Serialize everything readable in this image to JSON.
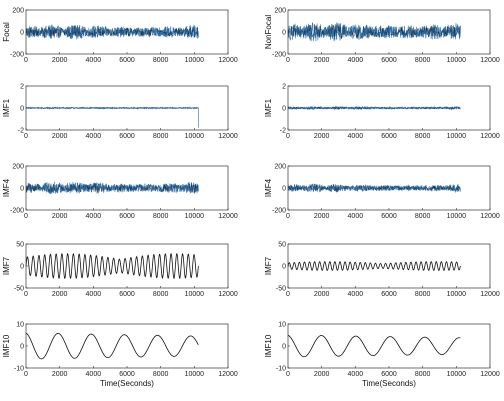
{
  "colors": {
    "signal": "#2f6fa8",
    "trace": "#111111",
    "frame": "#333333"
  },
  "chart_data": [
    {
      "type": "line",
      "panel": "focal-signal",
      "column": "left",
      "row": 0,
      "ylabel": "Focal",
      "xlabel": "",
      "xlim": [
        0,
        12000
      ],
      "ylim": [
        -200,
        200
      ],
      "xticks": [
        0,
        2000,
        4000,
        6000,
        8000,
        10000,
        12000
      ],
      "yticks": [
        200,
        0,
        -200
      ],
      "x_extent": [
        0,
        10240
      ],
      "amplitude": 70,
      "waveform": "dense-noise"
    },
    {
      "type": "line",
      "panel": "imf1-left",
      "column": "left",
      "row": 1,
      "ylabel": "IMF1",
      "xlabel": "",
      "xlim": [
        0,
        12000
      ],
      "ylim": [
        -2,
        2
      ],
      "xticks": [
        0,
        2000,
        4000,
        6000,
        8000,
        10000,
        12000
      ],
      "yticks": [
        2,
        0,
        -2
      ],
      "x_extent": [
        0,
        10240
      ],
      "amplitude": 0.05,
      "waveform": "flat-with-end-drop"
    },
    {
      "type": "line",
      "panel": "imf4-left",
      "column": "left",
      "row": 2,
      "ylabel": "IMF4",
      "xlabel": "",
      "xlim": [
        0,
        12000
      ],
      "ylim": [
        -200,
        200
      ],
      "xticks": [
        0,
        2000,
        4000,
        6000,
        8000,
        10000,
        12000
      ],
      "yticks": [
        200,
        0,
        -200
      ],
      "x_extent": [
        0,
        10240
      ],
      "amplitude": 60,
      "waveform": "dense-noise"
    },
    {
      "type": "line",
      "panel": "imf7-left",
      "column": "left",
      "row": 3,
      "ylabel": "IMF7",
      "xlabel": "",
      "xlim": [
        0,
        12000
      ],
      "ylim": [
        -50,
        50
      ],
      "xticks": [
        0,
        2000,
        4000,
        6000,
        8000,
        10000,
        12000
      ],
      "yticks": [
        50,
        0,
        -50
      ],
      "x_extent": [
        0,
        10240
      ],
      "amplitude": 28,
      "waveform": "oscillation",
      "periods": 30
    },
    {
      "type": "line",
      "panel": "imf10-left",
      "column": "left",
      "row": 4,
      "ylabel": "IMF10",
      "xlabel": "Time(Seconds)",
      "xlim": [
        0,
        12000
      ],
      "ylim": [
        -10,
        10
      ],
      "xticks": [
        0,
        2000,
        4000,
        6000,
        8000,
        10000,
        12000
      ],
      "yticks": [
        10,
        0,
        -10
      ],
      "x_extent": [
        0,
        10240
      ],
      "amplitude": 6,
      "waveform": "slow-wave",
      "periods": 5.2
    },
    {
      "type": "line",
      "panel": "nonfocal-signal",
      "column": "right",
      "row": 0,
      "ylabel": "NonFocal",
      "xlabel": "",
      "xlim": [
        0,
        12000
      ],
      "ylim": [
        -200,
        200
      ],
      "xticks": [
        0,
        2000,
        4000,
        6000,
        8000,
        10000,
        12000
      ],
      "yticks": [
        200,
        0,
        -200
      ],
      "x_extent": [
        0,
        10240
      ],
      "amplitude": 90,
      "waveform": "dense-noise"
    },
    {
      "type": "line",
      "panel": "imf1-right",
      "column": "right",
      "row": 1,
      "ylabel": "IMF1",
      "xlabel": "",
      "xlim": [
        0,
        12000
      ],
      "ylim": [
        -2,
        2
      ],
      "xticks": [
        0,
        2000,
        4000,
        6000,
        8000,
        10000,
        12000
      ],
      "yticks": [
        2,
        0,
        -2
      ],
      "x_extent": [
        0,
        10240
      ],
      "amplitude": 0.15,
      "waveform": "dense-noise"
    },
    {
      "type": "line",
      "panel": "imf4-right",
      "column": "right",
      "row": 2,
      "ylabel": "IMF4",
      "xlabel": "",
      "xlim": [
        0,
        12000
      ],
      "ylim": [
        -200,
        200
      ],
      "xticks": [
        0,
        2000,
        4000,
        6000,
        8000,
        10000,
        12000
      ],
      "yticks": [
        200,
        0,
        -200
      ],
      "x_extent": [
        0,
        10240
      ],
      "amplitude": 40,
      "waveform": "dense-noise"
    },
    {
      "type": "line",
      "panel": "imf7-right",
      "column": "right",
      "row": 3,
      "ylabel": "IMF7",
      "xlabel": "",
      "xlim": [
        0,
        12000
      ],
      "ylim": [
        -50,
        50
      ],
      "xticks": [
        0,
        2000,
        4000,
        6000,
        8000,
        10000,
        12000
      ],
      "yticks": [
        50,
        0,
        -50
      ],
      "x_extent": [
        0,
        10240
      ],
      "amplitude": 10,
      "waveform": "oscillation",
      "periods": 34
    },
    {
      "type": "line",
      "panel": "imf10-right",
      "column": "right",
      "row": 4,
      "ylabel": "IMF10",
      "xlabel": "Time(Seconds)",
      "xlim": [
        0,
        12000
      ],
      "ylim": [
        -10,
        10
      ],
      "xticks": [
        0,
        2000,
        4000,
        6000,
        8000,
        10000,
        12000
      ],
      "yticks": [
        10,
        0,
        -10
      ],
      "x_extent": [
        0,
        10240
      ],
      "amplitude": 5,
      "waveform": "slow-wave",
      "periods": 5.0
    }
  ]
}
